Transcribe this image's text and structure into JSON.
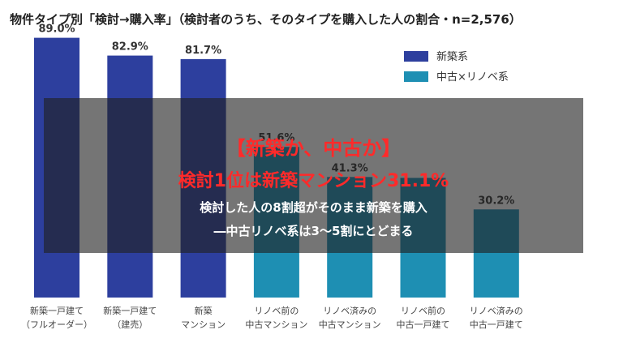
{
  "chart_data": {
    "type": "bar",
    "title": "物件タイプ別「検討→購入率」（検討者のうち、そのタイプを購入した人の割合・n=2,576）",
    "categories": [
      [
        "新築一戸建て",
        "（フルオーダー）"
      ],
      [
        "新築一戸建て",
        "（建売）"
      ],
      [
        "新築",
        "マンション"
      ],
      [
        "リノベ前の",
        "中古マンション"
      ],
      [
        "リノベ済みの",
        "中古マンション"
      ],
      [
        "リノベ前の",
        "中古一戸建て"
      ],
      [
        "リノベ済みの",
        "中古一戸建て"
      ]
    ],
    "values": [
      89.0,
      82.9,
      81.7,
      51.6,
      41.3,
      41.0,
      30.2
    ],
    "value_labels": [
      "89.0%",
      "82.9%",
      "81.7%",
      "51.6%",
      "41.3%",
      "",
      "30.2%"
    ],
    "series_group": [
      "新築系",
      "新築系",
      "新築系",
      "中古×リノベ系",
      "中古×リノベ系",
      "中古×リノベ系",
      "中古×リノベ系"
    ],
    "legend": [
      {
        "name": "新築系",
        "color": "#2d3f9e"
      },
      {
        "name": "中古×リノベ系",
        "color": "#1e8fb3"
      }
    ],
    "legend_position": "top-right",
    "ylim": [
      0,
      100
    ],
    "grid": false
  },
  "overlay": {
    "line1": "【新築か、中古か】",
    "line2": "検討1位は新築マンション31.1%",
    "line3": "検討した人の8割超がそのまま新築を購入",
    "line4": "―中古リノベ系は3〜5割にとどまる"
  }
}
